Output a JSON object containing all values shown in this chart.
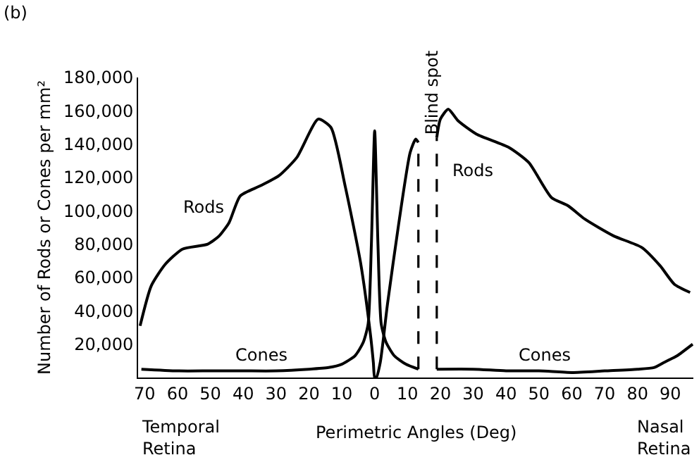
{
  "chart_data": {
    "type": "line",
    "title": "(b)",
    "xlabel": "Perimetric Angles (Deg)",
    "ylabel": "Number of Rods or Cones per mm²",
    "xlim": [
      -72,
      97
    ],
    "ylim": [
      0,
      180000
    ],
    "xticks": [
      {
        "value": -70,
        "label": "70"
      },
      {
        "value": -60,
        "label": "60"
      },
      {
        "value": -50,
        "label": "50"
      },
      {
        "value": -40,
        "label": "40"
      },
      {
        "value": -30,
        "label": "30"
      },
      {
        "value": -20,
        "label": "20"
      },
      {
        "value": -10,
        "label": "10"
      },
      0,
      10,
      20,
      30,
      40,
      50,
      60,
      70,
      80,
      90
    ],
    "yticks": [
      {
        "value": 20000,
        "label": "20,000"
      },
      {
        "value": 40000,
        "label": "40,000"
      },
      {
        "value": 60000,
        "label": "60,000"
      },
      {
        "value": 80000,
        "label": "80,000"
      },
      {
        "value": 100000,
        "label": "100,000"
      },
      {
        "value": 120000,
        "label": "120,000"
      },
      {
        "value": 140000,
        "label": "140,000"
      },
      {
        "value": 160000,
        "label": "160,000"
      },
      {
        "value": 180000,
        "label": "180,000"
      }
    ],
    "marker": "none",
    "series": [
      {
        "color": "#000000",
        "line_style": "solid",
        "x": [
          -71.4,
          -68,
          -63.7,
          -58.5,
          -50.8,
          -47.3,
          -44.3,
          -40.9,
          -34.8,
          -29.2,
          -23.7,
          -17.2,
          -13.3,
          -9,
          -4.3,
          -1.3,
          -0.4,
          0,
          0.5,
          1.7,
          3.9,
          7.3,
          10.8,
          12.5,
          13.3,
          16,
          18.9,
          20,
          22.4,
          25.4,
          31,
          40.9,
          46.9,
          53.8,
          58.9,
          64,
          72.7,
          81.3,
          86.9,
          91.2,
          96
        ],
        "values": [
          31000,
          55000,
          68000,
          77000,
          80000,
          85000,
          93000,
          109000,
          115000,
          121000,
          132000,
          155000,
          150000,
          115000,
          69000,
          26000,
          9000,
          0,
          0,
          9000,
          44000,
          92000,
          135000,
          143000,
          141000,
          null,
          144000,
          155000,
          161000,
          154000,
          146000,
          138000,
          129000,
          108000,
          103000,
          95000,
          85000,
          78000,
          67000,
          56000,
          51000
        ]
      },
      {
        "color": "#000000",
        "line_style": "solid",
        "x": [
          -71,
          -60,
          -50,
          -40,
          -30,
          -20,
          -14,
          -10,
          -6,
          -3.5,
          -2,
          -1,
          0,
          1,
          2,
          3.5,
          6,
          9.5,
          13.3,
          16,
          18.9,
          30,
          40,
          50,
          60,
          70,
          80,
          85,
          88,
          92,
          96.8
        ],
        "values": [
          5000,
          4000,
          4000,
          4000,
          4000,
          5000,
          6000,
          8000,
          13000,
          21000,
          32000,
          80000,
          148000,
          80000,
          32000,
          21000,
          13000,
          8000,
          5000,
          null,
          5000,
          5000,
          4000,
          4000,
          3000,
          4000,
          5000,
          6000,
          9000,
          13000,
          20000
        ]
      },
      {
        "color": "#000000",
        "line_style": "dashed",
        "x": [
          13.3,
          13.3
        ],
        "values": [
          5000,
          141000
        ]
      },
      {
        "color": "#000000",
        "line_style": "dashed",
        "x": [
          18.9,
          18.9
        ],
        "values": [
          5000,
          144000
        ]
      }
    ],
    "annotations": [
      "Rods",
      "Rods",
      "Cones",
      "Cones",
      "Blind spot",
      "Temporal Retina",
      "Nasal Retina"
    ]
  }
}
